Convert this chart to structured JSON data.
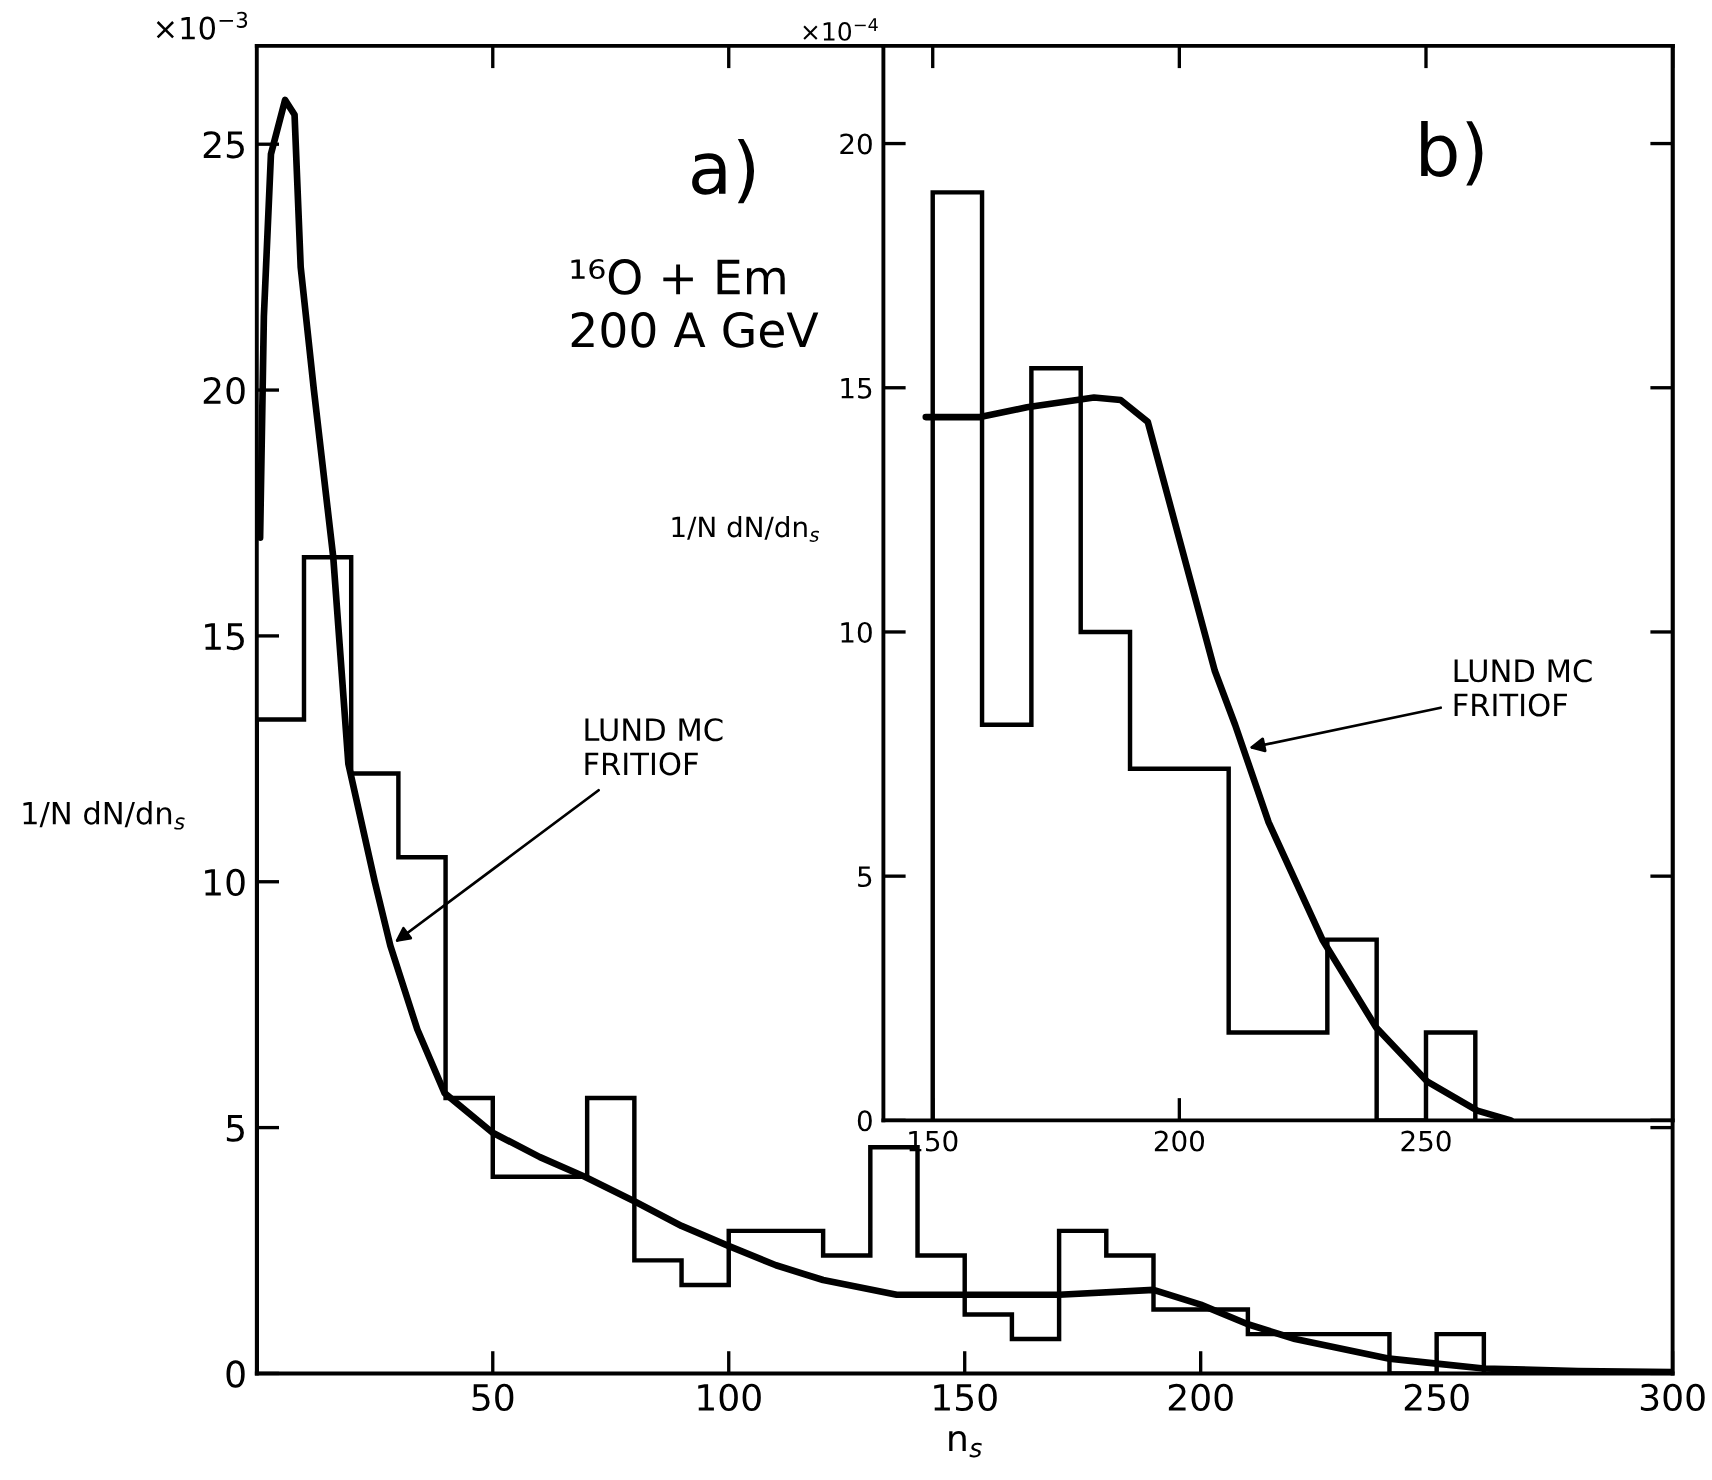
{
  "chart_data": [
    {
      "type": "histogram",
      "xlabel": "n$_{s}$",
      "ylabel": "1/N dN/dn$_{s}$",
      "series": [
        {
          "color": "#000000",
          "bins": [
            0,
            10,
            20,
            30,
            40,
            50,
            60,
            70,
            80,
            90,
            100,
            110,
            120,
            130,
            140,
            150,
            160,
            170,
            180,
            190,
            200,
            210,
            220,
            230,
            240,
            250,
            260
          ],
          "values": [
            13.3,
            16.6,
            12.2,
            10.5,
            5.6,
            4.0,
            4.0,
            5.6,
            2.3,
            1.8,
            2.9,
            2.9,
            2.4,
            4.6,
            2.4,
            1.2,
            0.7,
            2.9,
            2.4,
            1.3,
            1.3,
            0.8,
            0.8,
            0.8,
            0,
            0.8
          ]
        },
        {
          "type": "line",
          "color": "#000000",
          "x": [
            0.7,
            1.5,
            3,
            6,
            8,
            9.3,
            12.1,
            16.2,
            19.4,
            25,
            28.3,
            34,
            39.8,
            49.9,
            60,
            69.5,
            80,
            90,
            99.8,
            110,
            120,
            135.6,
            150,
            170,
            190,
            200,
            210,
            220,
            240,
            250,
            260,
            280,
            300
          ],
          "values": [
            17.0,
            21.5,
            24.8,
            25.9,
            25.6,
            22.5,
            20,
            16.6,
            12.4,
            10,
            8.7,
            7.0,
            5.7,
            4.9,
            4.4,
            4.0,
            3.5,
            3.0,
            2.6,
            2.2,
            1.9,
            1.6,
            1.6,
            1.6,
            1.7,
            1.4,
            1.0,
            0.7,
            0.3,
            0.2,
            0.1,
            0.05,
            0.03
          ]
        }
      ],
      "xlim": [
        0,
        300
      ],
      "xticks": [
        50,
        100,
        150,
        200,
        250,
        300
      ],
      "ylim": [
        0,
        27
      ],
      "yticks": [
        0,
        5,
        10,
        15,
        20,
        25
      ],
      "grid": false,
      "legend": false,
      "annotations": [
        "×10$^{−3}$",
        "a)",
        "¹⁶O + Em\n200 A GeV",
        {
          "text": "LUND MC\nFRITIOF",
          "x": 28.3,
          "y": 8.7
        }
      ]
    },
    {
      "type": "histogram",
      "ylabel": "1/N dN/dn$_{s}$",
      "series": [
        {
          "color": "#000000",
          "bins": [
            150,
            160,
            170,
            180,
            190,
            200,
            210,
            220,
            230,
            240,
            250,
            260
          ],
          "values": [
            19.0,
            8.1,
            15.4,
            10.0,
            7.2,
            7.2,
            1.8,
            1.8,
            3.7,
            0,
            1.8
          ]
        },
        {
          "type": "line",
          "color": "#000000",
          "x": [
            148.6,
            159.6,
            169.1,
            182.7,
            188.1,
            193.6,
            198.4,
            207.2,
            211.3,
            218.1,
            229,
            239.9,
            250.2,
            260.4,
            267.2
          ],
          "values": [
            14.4,
            14.4,
            14.6,
            14.8,
            14.75,
            14.3,
            12.5,
            9.2,
            8.1,
            6.1,
            3.7,
            1.9,
            0.8,
            0.2,
            0
          ]
        }
      ],
      "xlim": [
        140,
        300
      ],
      "xticks": [
        150,
        200,
        250
      ],
      "ylim": [
        0,
        22
      ],
      "yticks": [
        0,
        5,
        10,
        15,
        20
      ],
      "grid": false,
      "legend": false,
      "annotations": [
        "×10$^{−4}$",
        "b)",
        {
          "text": "LUND MC\nFRITIOF",
          "x": 213,
          "y": 7.6
        }
      ]
    }
  ]
}
